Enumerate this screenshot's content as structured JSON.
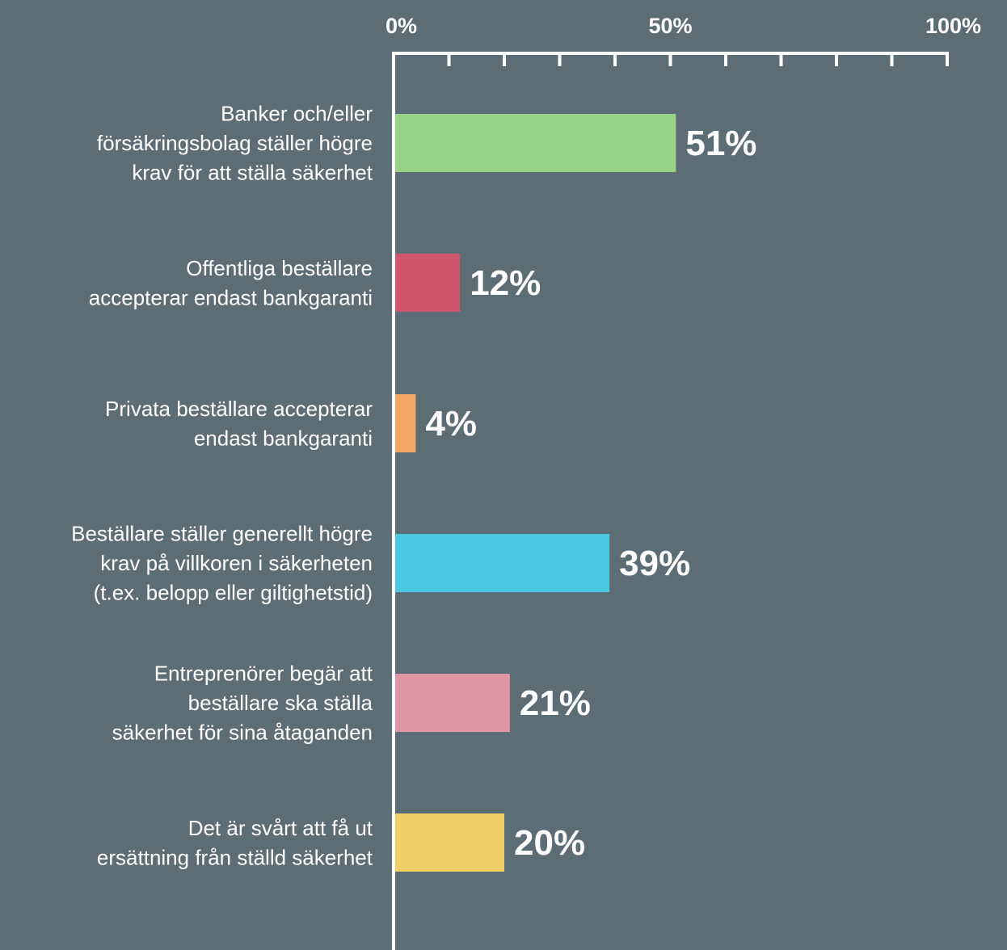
{
  "background_color": "#5d6d75",
  "text_color": "#ffffff",
  "chart_data": {
    "type": "bar",
    "orientation": "horizontal",
    "title": "",
    "xlabel": "",
    "ylabel": "",
    "xlim": [
      0,
      100
    ],
    "x_ticks": [
      {
        "value": 0,
        "label": "0%"
      },
      {
        "value": 50,
        "label": "50%"
      },
      {
        "value": 100,
        "label": "100%"
      }
    ],
    "minor_tick_values": [
      10,
      20,
      30,
      40,
      50,
      60,
      70,
      80,
      90,
      100
    ],
    "axis_position": "top",
    "grid": false,
    "categories": [
      [
        "Banker och/eller",
        "försäkringsbolag ställer högre",
        "krav för att ställa säkerhet"
      ],
      [
        "Offentliga beställare",
        "accepterar endast bankgaranti"
      ],
      [
        "Privata beställare accepterar",
        "endast bankgaranti"
      ],
      [
        "Beställare ställer generellt högre",
        "krav på villkoren i säkerheten",
        "(t.ex. belopp eller giltighetstid)"
      ],
      [
        "Entreprenörer begär att",
        "beställare ska ställa",
        "säkerhet för sina åtaganden"
      ],
      [
        "Det är svårt att få ut",
        "ersättning från ställd säkerhet"
      ]
    ],
    "values": [
      51,
      12,
      4,
      39,
      21,
      20
    ],
    "value_labels": [
      "51%",
      "12%",
      "4%",
      "39%",
      "21%",
      "20%"
    ],
    "bar_colors": [
      "#98d286",
      "#cf566d",
      "#f4a868",
      "#4ac7e1",
      "#de95a5",
      "#f0cf67"
    ]
  }
}
